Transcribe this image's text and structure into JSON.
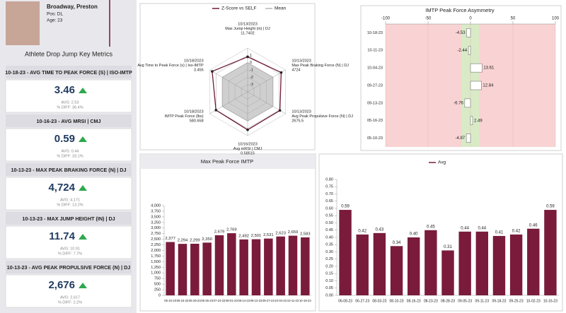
{
  "athlete": {
    "name": "Broadway, Preston",
    "position": "Pos: DL",
    "age": "Age: 23"
  },
  "metrics_title": "Athlete Drop Jump Key Metrics",
  "metrics": [
    {
      "title": "10-18-23 - AVG TIME TO PEAK FORCE (S) | ISO-IMTP",
      "value": "3.46",
      "avg": "AVG: 2.53",
      "diff": "% DIFF: 36.4%"
    },
    {
      "title": "10-16-23 - AVG MRSI | CMJ",
      "value": "0.59",
      "avg": "AVG: 0.44",
      "diff": "% DIFF: 33.1%"
    },
    {
      "title": "10-13-23 - MAX PEAK BRAKING FORCE (N) | DJ",
      "value": "4,724",
      "avg": "AVG: 4,171",
      "diff": "% DIFF: 13.2%"
    },
    {
      "title": "10-13-23 - MAX JUMP HEIGHT (IN) | DJ",
      "value": "11.74",
      "avg": "AVG: 10.91",
      "diff": "% DIFF: 7.7%"
    },
    {
      "title": "10-13-23 - AVG PEAK PROPULSIVE FORCE (N) | DJ",
      "value": "2,676",
      "avg": "AVG: 2,617",
      "diff": "% DIFF: 2.2%"
    }
  ],
  "chart_data": [
    {
      "type": "radar",
      "axes": [
        {
          "date": "10/13/2023",
          "label": "Max Jump Height (in) | DJ",
          "value": 11.7402
        },
        {
          "date": "10/13/2023",
          "label": "Max Peak Braking Force (N) | DJ",
          "value": 4724
        },
        {
          "date": "10/13/2023",
          "label": "Avg Peak Propulsive Force (N) | DJ",
          "value": 2675.5
        },
        {
          "date": "10/16/2023",
          "label": "Avg mRSI | CMJ",
          "value": 0.58515
        },
        {
          "date": "10/18/2023",
          "label": "IMTP Peak Force (lbs)",
          "value": 580.658
        },
        {
          "date": "10/18/2023",
          "label": "Avg Time to Peak Force (s) | Iso-IMTP",
          "value": 3.456
        }
      ],
      "series": [
        {
          "name": "Z-Score vs SELF",
          "color": "#6e1a35",
          "values": [
            0.8,
            1.3,
            1.1,
            1.2,
            1.0,
            1.6
          ]
        },
        {
          "name": "Mean",
          "color": "#b5b5b5",
          "values": [
            0,
            0,
            0,
            0,
            0,
            0
          ]
        }
      ],
      "rlim": [
        -4,
        2
      ],
      "rticks": [
        1,
        0,
        -1,
        -2,
        -3
      ]
    },
    {
      "type": "bar",
      "orientation": "horizontal",
      "title": "IMTP Peak Force Asymmetry",
      "categories": [
        "10-18-23",
        "10-11-23",
        "10-04-23",
        "09-27-23",
        "09-13-23",
        "05-16-23",
        "05-10-23"
      ],
      "values": [
        -4.53,
        -2.44,
        13.61,
        12.84,
        -6.76,
        2.49,
        -4.87
      ],
      "color": "#ffffff",
      "background": "#f9d3d3",
      "bands": [
        {
          "from": -10,
          "to": 10,
          "color": "#d8ebc6"
        }
      ],
      "xlim": [
        -100,
        100
      ],
      "xticks": [
        -100,
        -50,
        0,
        50,
        100
      ]
    },
    {
      "type": "bar",
      "title": "Max Peak Force IMTP",
      "categories": [
        "05-10-23",
        "05-16-23",
        "05-26-23",
        "06-26-23",
        "07-24-23",
        "08-01-23",
        "08-14-23",
        "09-13-23",
        "09-27-23",
        "10-04-23",
        "10-11-23",
        "10-18-23"
      ],
      "values": [
        2377,
        2294,
        2299,
        2350,
        2679,
        2769,
        2492,
        2501,
        2531,
        2623,
        2659,
        2583
      ],
      "value_labels": [
        "2,377",
        "2,294",
        "2,299",
        "2,350",
        "2,679",
        "2,769",
        "2,492",
        "2,501",
        "2,531",
        "2,623",
        "2,659",
        "2,583"
      ],
      "color": "#7a1b3c",
      "ylim": [
        0,
        4000
      ],
      "yticks": [
        0,
        250,
        500,
        750,
        {
          "value": 1000,
          "label": "1,000"
        },
        {
          "value": 1250,
          "label": "1,250"
        },
        {
          "value": 1500,
          "label": "1,500"
        },
        {
          "value": 1750,
          "label": "1,750"
        },
        {
          "value": 2000,
          "label": "2,000"
        },
        {
          "value": 2250,
          "label": "2,250"
        },
        {
          "value": 2500,
          "label": "2,500"
        },
        {
          "value": 2750,
          "label": "2,750"
        },
        {
          "value": 3000,
          "label": "3,000"
        },
        {
          "value": 3250,
          "label": "3,250"
        },
        {
          "value": 3500,
          "label": "3,500"
        },
        {
          "value": 3750,
          "label": "3,750"
        },
        {
          "value": 4000,
          "label": "4,000"
        }
      ]
    },
    {
      "type": "bar",
      "categories": [
        "06-08-23",
        "06-27-23",
        "08-03-23",
        "08-10-23",
        "08-16-23",
        "08-23-23",
        "08-28-23",
        "09-05-23",
        "09-11-23",
        "09-18-23",
        "09-25-23",
        "10-02-23",
        "10-16-23"
      ],
      "series": [
        {
          "name": "Avg",
          "color": "#7a1b3c",
          "values": [
            0.59,
            0.42,
            0.43,
            0.34,
            0.4,
            0.45,
            0.31,
            0.44,
            0.44,
            0.41,
            0.42,
            0.46,
            0.59
          ],
          "value_labels": [
            "0.59",
            "0.42",
            "0.43",
            "0.34",
            "0.40",
            "0.45",
            "0.31",
            "0.44",
            "0.44",
            "0.41",
            "0.42",
            "0.46",
            "0.59"
          ]
        }
      ],
      "ylim": [
        0,
        0.8
      ],
      "yticks": [
        {
          "value": 0,
          "label": "0.00"
        },
        {
          "value": 0.05,
          "label": "0.05"
        },
        {
          "value": 0.1,
          "label": "0.10"
        },
        {
          "value": 0.15,
          "label": "0.15"
        },
        {
          "value": 0.2,
          "label": "0.20"
        },
        {
          "value": 0.25,
          "label": "0.25"
        },
        {
          "value": 0.3,
          "label": "0.30"
        },
        {
          "value": 0.35,
          "label": "0.35"
        },
        {
          "value": 0.4,
          "label": "0.40"
        },
        {
          "value": 0.45,
          "label": "0.45"
        },
        {
          "value": 0.5,
          "label": "0.50"
        },
        {
          "value": 0.55,
          "label": "0.55"
        },
        {
          "value": 0.6,
          "label": "0.60"
        },
        {
          "value": 0.65,
          "label": "0.65"
        },
        {
          "value": 0.7,
          "label": "0.70"
        },
        {
          "value": 0.75,
          "label": "0.75"
        },
        {
          "value": 0.8,
          "label": "0.80"
        }
      ]
    }
  ]
}
